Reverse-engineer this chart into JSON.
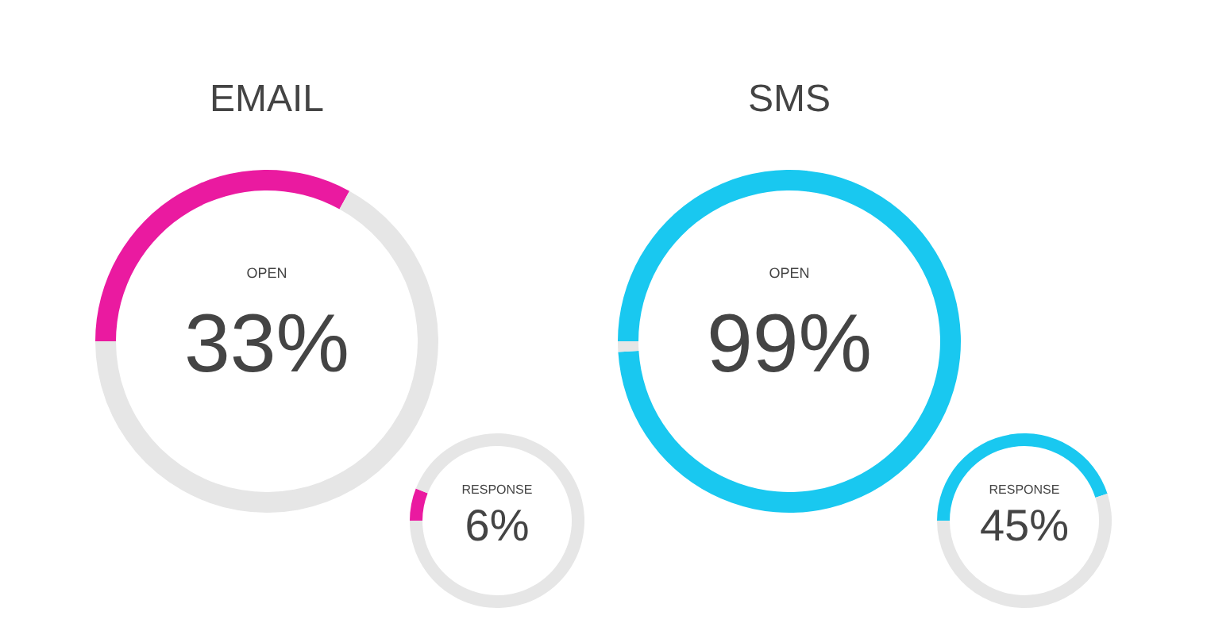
{
  "chart_data": [
    {
      "type": "donut",
      "title": "EMAIL",
      "categories": [
        "OPEN",
        null
      ],
      "values": [
        33,
        67
      ],
      "colors": [
        "#ea1aa0",
        "#e6e6e6"
      ],
      "value_labels": [
        "33%",
        null
      ]
    },
    {
      "type": "donut",
      "categories": [
        null,
        null
      ],
      "values": [
        6,
        94
      ],
      "colors": [
        "#ea1aa0",
        "#e6e6e6"
      ],
      "annotations": [
        "RESPONSE",
        "6%"
      ]
    },
    {
      "type": "donut",
      "title": "SMS",
      "categories": [
        "OPEN",
        null
      ],
      "values": [
        99,
        1
      ],
      "colors": [
        "#19c8f0",
        "#e6e6e6"
      ],
      "value_labels": [
        "99%",
        null
      ]
    },
    {
      "type": "donut",
      "categories": [
        "RESPONSE",
        null
      ],
      "values": [
        45,
        55
      ],
      "colors": [
        "#19c8f0",
        "#e6e6e6"
      ],
      "value_labels": [
        "45%",
        null
      ]
    }
  ]
}
